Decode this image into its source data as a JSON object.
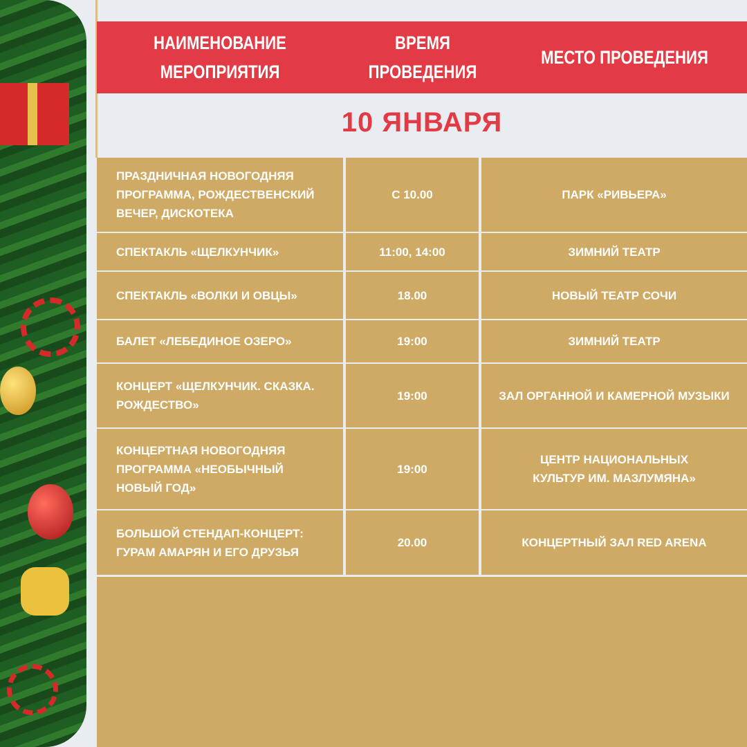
{
  "header": {
    "col_event": "НАИМЕНОВАНИЕ МЕРОПРИЯТИЯ",
    "col_time": "ВРЕМЯ ПРОВЕДЕНИЯ",
    "col_place": "МЕСТО ПРОВЕДЕНИЯ"
  },
  "date": "10 ЯНВАРЯ",
  "colors": {
    "red": "#e23b45",
    "gold": "#cfaa64",
    "background": "#e9edf1"
  },
  "rows": [
    {
      "event": "ПРАЗДНИЧНАЯ НОВОГОДНЯЯ ПРОГРАММА, РОЖДЕСТВЕНСКИЙ ВЕЧЕР, ДИСКОТЕКА",
      "time": "С 10.00",
      "place": "ПАРК «РИВЬЕРА»"
    },
    {
      "event": "СПЕКТАКЛЬ «ЩЕЛКУНЧИК»",
      "time": "11:00, 14:00",
      "place": "ЗИМНИЙ ТЕАТР"
    },
    {
      "event": "СПЕКТАКЛЬ «ВОЛКИ И ОВЦЫ»",
      "time": "18.00",
      "place": "НОВЫЙ ТЕАТР СОЧИ"
    },
    {
      "event": "БАЛЕТ «ЛЕБЕДИНОЕ ОЗЕРО»",
      "time": "19:00",
      "place": "ЗИМНИЙ ТЕАТР"
    },
    {
      "event": "КОНЦЕРТ «ЩЕЛКУНЧИК. СКАЗКА. РОЖДЕСТВО»",
      "time": "19:00",
      "place": "ЗАЛ ОРГАННОЙ И КАМЕРНОЙ МУЗЫКИ"
    },
    {
      "event": "КОНЦЕРТНАЯ НОВОГОДНЯЯ ПРОГРАММА «НЕОБЫЧНЫЙ НОВЫЙ ГОД»",
      "time": "19:00",
      "place": "ЦЕНТР НАЦИОНАЛЬНЫХ КУЛЬТУР ИМ. МАЗЛУМЯНА»"
    },
    {
      "event": "БОЛЬШОЙ СТЕНДАП-КОНЦЕРТ: ГУРАМ АМАРЯН И ЕГО ДРУЗЬЯ",
      "time": "20.00",
      "place": "КОНЦЕРТНЫЙ ЗАЛ RED ARENA"
    }
  ]
}
